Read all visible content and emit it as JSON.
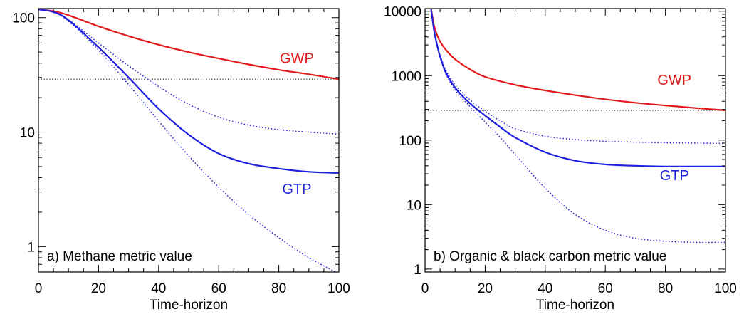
{
  "chart_data": [
    {
      "type": "line",
      "panel_label": "a) Methane metric value",
      "xlabel": "Time-horizon",
      "ylabel": "",
      "xlim": [
        0,
        100
      ],
      "ylim": [
        0.6,
        120
      ],
      "y_scale": "log",
      "x_ticks": [
        0,
        20,
        40,
        60,
        80,
        100
      ],
      "y_ticks": [
        1,
        10,
        100
      ],
      "annotations": [
        {
          "text": "GWP",
          "x": 86,
          "y": 40,
          "color": "#e31a1c"
        },
        {
          "text": "GTP",
          "x": 86,
          "y": 2.9,
          "color": "#1f1fe0"
        }
      ],
      "reference_line": {
        "y": 29,
        "style": "dotted",
        "color": "#000000"
      },
      "series": [
        {
          "name": "GWP",
          "color": "#e31a1c",
          "style": "solid",
          "x": [
            0,
            5,
            10,
            20,
            30,
            40,
            50,
            60,
            70,
            80,
            90,
            100
          ],
          "y": [
            118,
            114,
            105,
            84,
            69,
            58,
            50,
            44,
            39,
            35,
            32,
            29
          ]
        },
        {
          "name": "GTP",
          "color": "#1f1fe0",
          "style": "solid",
          "x": [
            0,
            5,
            10,
            20,
            30,
            40,
            50,
            60,
            70,
            80,
            90,
            100
          ],
          "y": [
            118,
            112,
            95,
            55,
            30,
            16,
            9.5,
            6.5,
            5.3,
            4.8,
            4.5,
            4.4
          ]
        },
        {
          "name": "GTP",
          "color": "#1f1fe0",
          "style": "dotted",
          "x": [
            0,
            5,
            10,
            20,
            30,
            40,
            50,
            60,
            70,
            80,
            90,
            100
          ],
          "y": [
            118,
            112,
            96,
            60,
            38,
            25,
            17.5,
            13.5,
            11.5,
            10.5,
            10,
            9.6
          ]
        },
        {
          "name": "GTP",
          "color": "#1f1fe0",
          "style": "dotted",
          "x": [
            0,
            5,
            10,
            20,
            30,
            40,
            50,
            60,
            70,
            80,
            90,
            100
          ],
          "y": [
            118,
            112,
            93,
            52,
            26,
            12.5,
            6.2,
            3.3,
            1.9,
            1.2,
            0.8,
            0.58
          ]
        }
      ]
    },
    {
      "type": "line",
      "panel_label": "b) Organic & black carbon metric value",
      "xlabel": "Time-horizon",
      "ylabel": "",
      "xlim": [
        0,
        100
      ],
      "ylim": [
        0.9,
        11000
      ],
      "y_scale": "log",
      "x_ticks": [
        0,
        20,
        40,
        60,
        80,
        100
      ],
      "y_ticks": [
        1,
        10,
        100,
        1000,
        10000
      ],
      "annotations": [
        {
          "text": "GWP",
          "x": 83,
          "y": 720,
          "color": "#e31a1c"
        },
        {
          "text": "GTP",
          "x": 83,
          "y": 24,
          "color": "#1f1fe0"
        }
      ],
      "reference_line": {
        "y": 290,
        "style": "dotted",
        "color": "#000000"
      },
      "series": [
        {
          "name": "GWP",
          "color": "#e31a1c",
          "style": "solid",
          "x": [
            2,
            3,
            4,
            5,
            7,
            10,
            15,
            20,
            30,
            40,
            50,
            60,
            70,
            80,
            90,
            100
          ],
          "y": [
            11000,
            6000,
            4300,
            3400,
            2500,
            1800,
            1250,
            960,
            720,
            590,
            500,
            430,
            380,
            345,
            315,
            290
          ]
        },
        {
          "name": "GTP",
          "color": "#1f1fe0",
          "style": "solid",
          "x": [
            2,
            3,
            4,
            5,
            7,
            10,
            15,
            20,
            25,
            30,
            40,
            50,
            60,
            70,
            80,
            90,
            100
          ],
          "y": [
            11000,
            5000,
            3000,
            2000,
            1100,
            650,
            370,
            240,
            160,
            110,
            65,
            48,
            42,
            40,
            39,
            39,
            39
          ]
        },
        {
          "name": "GTP",
          "color": "#1f1fe0",
          "style": "dotted",
          "x": [
            2,
            3,
            4,
            5,
            7,
            10,
            15,
            20,
            25,
            30,
            40,
            50,
            60,
            70,
            80,
            90,
            100
          ],
          "y": [
            11000,
            5200,
            3200,
            2100,
            1200,
            720,
            420,
            280,
            200,
            150,
            115,
            102,
            96,
            93,
            91,
            90,
            89
          ]
        },
        {
          "name": "GTP",
          "color": "#1f1fe0",
          "style": "dotted",
          "x": [
            2,
            3,
            4,
            5,
            7,
            10,
            15,
            20,
            25,
            30,
            40,
            50,
            60,
            70,
            80,
            90,
            100
          ],
          "y": [
            11000,
            5000,
            2900,
            1900,
            1050,
            600,
            330,
            190,
            110,
            60,
            18,
            7,
            4,
            3,
            2.7,
            2.6,
            2.6
          ]
        }
      ]
    }
  ]
}
